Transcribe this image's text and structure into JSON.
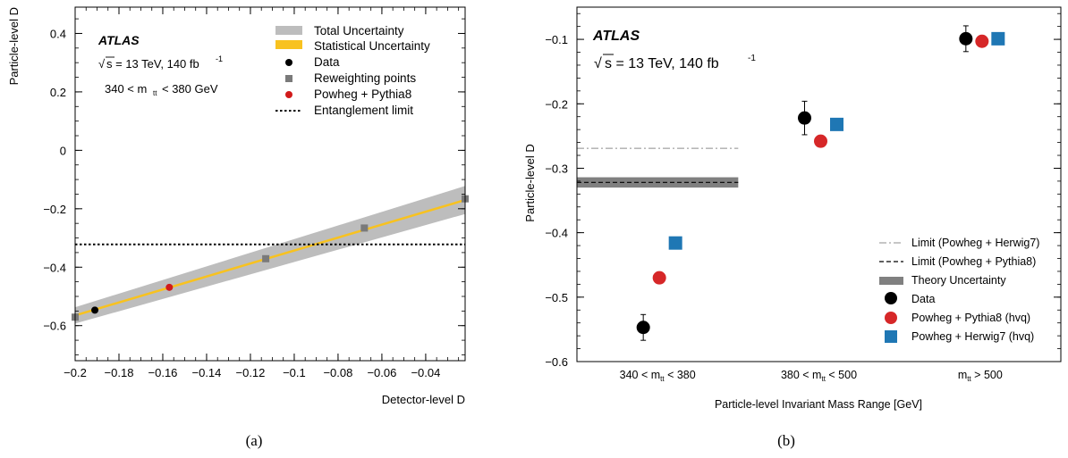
{
  "chart_data": [
    {
      "panel_label": "(a)",
      "type": "line",
      "brand": "ATLAS",
      "energy_text": "s = 13 TeV, 140 fb",
      "lumi_sup": "-1",
      "region_text_main": "340 < m",
      "region_text_sub": "tt",
      "region_text_tail": "< 380 GeV",
      "xlabel": "Detector-level D",
      "ylabel": "Particle-level D",
      "xlim": [
        -0.2,
        -0.022
      ],
      "ylim": [
        -0.72,
        0.49
      ],
      "x_ticks": [
        -0.2,
        -0.18,
        -0.16,
        -0.14,
        -0.12,
        -0.1,
        -0.08,
        -0.06,
        -0.04
      ],
      "x_tick_labels": [
        "−0.2",
        "−0.18",
        "−0.16",
        "−0.14",
        "−0.12",
        "−0.1",
        "−0.08",
        "−0.06",
        "−0.04"
      ],
      "y_ticks": [
        -0.6,
        -0.4,
        -0.2,
        0,
        0.2,
        0.4
      ],
      "y_tick_labels": [
        "−0.6",
        "−0.4",
        "−0.2",
        "0",
        "0.2",
        "0.4"
      ],
      "legend": [
        "Total Uncertainty",
        "Statistical Uncertainty",
        "Data",
        "Reweighting points",
        "Powheg + Pythia8",
        "Entanglement limit"
      ],
      "legend_position": "top-right",
      "calibration_line": {
        "x": [
          -0.2,
          -0.022
        ],
        "y": [
          -0.565,
          -0.17
        ]
      },
      "total_uncertainty_halfwidth": [
        0.028,
        0.048
      ],
      "statistical_uncertainty_halfwidth": 0.004,
      "reweighting_points": [
        {
          "x": -0.2,
          "y": -0.571
        },
        {
          "x": -0.113,
          "y": -0.371
        },
        {
          "x": -0.068,
          "y": -0.266
        },
        {
          "x": -0.022,
          "y": -0.166
        }
      ],
      "data_point": {
        "x": -0.191,
        "y": -0.547
      },
      "powheg_pythia8_point": {
        "x": -0.157,
        "y": -0.469
      },
      "entanglement_limit": -0.322,
      "colors": {
        "total": "#bdbdbd",
        "stat": "#f8c21f",
        "data": "#000000",
        "reweight": "#7a7a7a",
        "powheg": "#d11a1a"
      }
    },
    {
      "panel_label": "(b)",
      "type": "scatter",
      "brand": "ATLAS",
      "energy_text": "s = 13 TeV, 140 fb",
      "lumi_sup": "-1",
      "xlabel": "Particle-level Invariant Mass Range [GeV]",
      "ylabel": "Particle-level D",
      "categories": [
        {
          "main": "340 < m",
          "sub": "tt",
          "tail": " < 380"
        },
        {
          "main": "380 < m",
          "sub": "tt",
          "tail": " < 500"
        },
        {
          "main": "m",
          "sub": "tt",
          "tail": " > 500"
        }
      ],
      "ylim": [
        -0.6,
        -0.05
      ],
      "y_ticks": [
        -0.6,
        -0.5,
        -0.4,
        -0.3,
        -0.2,
        -0.1
      ],
      "y_tick_labels": [
        "−0.6",
        "−0.5",
        "−0.4",
        "−0.3",
        "−0.2",
        "−0.1"
      ],
      "legend": [
        "Limit (Powheg + Herwig7)",
        "Limit (Powheg + Pythia8)",
        "Theory Uncertainty",
        "Data",
        "Powheg + Pythia8 (hvq)",
        "Powheg + Herwig7 (hvq)"
      ],
      "legend_position": "bottom-right",
      "series": [
        {
          "name": "Data",
          "values": [
            -0.547,
            -0.222,
            -0.099
          ],
          "errors": [
            0.02,
            0.026,
            0.02
          ]
        },
        {
          "name": "Powheg + Pythia8 (hvq)",
          "values": [
            -0.47,
            -0.258,
            -0.103
          ]
        },
        {
          "name": "Powheg + Herwig7 (hvq)",
          "values": [
            -0.416,
            -0.232,
            -0.099
          ]
        }
      ],
      "limit_powheg_herwig7": -0.269,
      "limit_powheg_pythia8": -0.322,
      "theory_uncertainty_band": [
        -0.33,
        -0.314
      ],
      "colors": {
        "data": "#000000",
        "pythia": "#d62728",
        "herwig": "#1f77b4",
        "band": "#808080"
      }
    }
  ]
}
